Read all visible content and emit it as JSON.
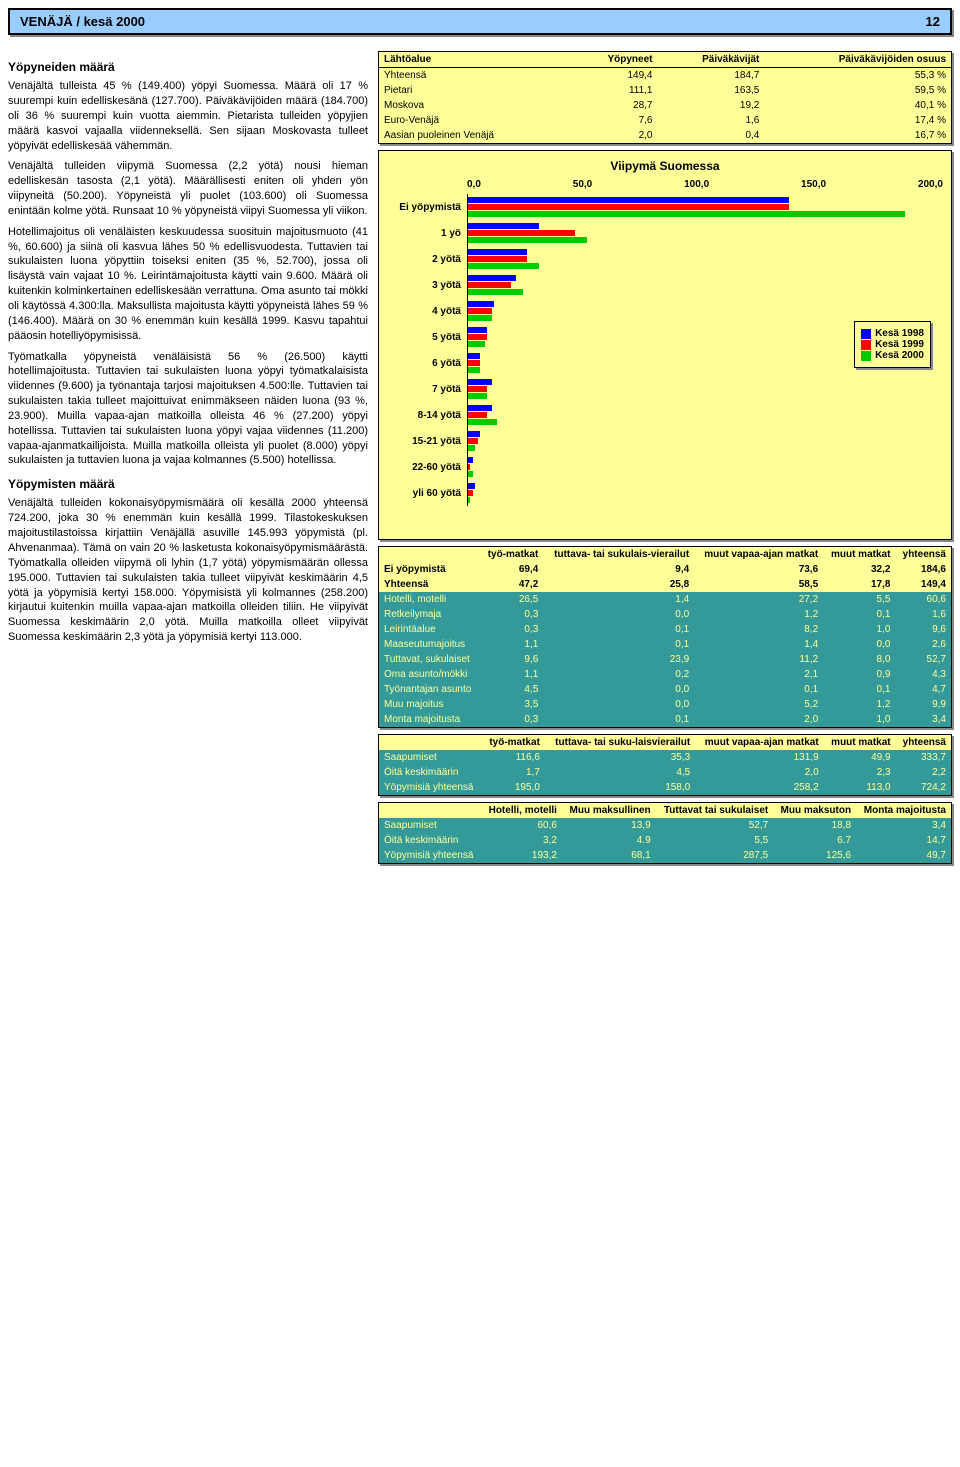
{
  "header": {
    "title": "VENÄJÄ / kesä 2000",
    "page": "12"
  },
  "left": {
    "h1": "Yöpyneiden määrä",
    "p1": "Venäjältä tulleista 45 % (149.400) yöpyi Suomessa. Määrä oli 17 % suurempi kuin edelliskesänä (127.700). Päiväkävijöiden määrä (184.700) oli 36 % suurempi kuin vuotta aiemmin. Pietarista tulleiden yöpyjien määrä kasvoi vajaalla viidenneksellä. Sen sijaan Moskovasta tulleet yöpyivät edelliskesää vähemmän.",
    "p2": "Venäjältä tulleiden viipymä Suomessa (2,2 yötä) nousi hieman edelliskesän tasosta (2,1 yötä). Määrällisesti eniten oli yhden yön viipyneitä (50.200). Yöpyneistä yli puolet (103.600) oli Suomessa enintään kolme yötä. Runsaat 10 % yöpyneistä viipyi Suomessa yli viikon.",
    "p3": "Hotellimajoitus oli venäläisten keskuudessa suosituin majoitusmuoto (41 %, 60.600) ja siinä oli kasvua lähes 50 % edellisvuodesta. Tuttavien tai sukulaisten luona yöpyttiin toiseksi eniten (35 %, 52.700), jossa oli lisäystä vain vajaat 10 %. Leirintämajoitusta käytti vain 9.600. Määrä oli kuitenkin kolminkertainen edelliskesään verrattuna. Oma asunto tai mökki oli käytössä 4.300:lla. Maksullista majoitusta käytti yöpyneistä lähes 59 % (146.400). Määrä on 30 % enemmän kuin kesällä 1999. Kasvu tapahtui pääosin hotelliyöpymisissä.",
    "p4": "Työmatkalla yöpyneistä venäläisistä 56 % (26.500) käytti hotellimajoitusta. Tuttavien tai sukulaisten luona yöpyi työmatkalaisista viidennes (9.600) ja työnantaja tarjosi majoituksen 4.500:lle. Tuttavien tai sukulaisten takia tulleet majoittuivat enimmäkseen näiden luona (93 %, 23.900). Muilla vapaa-ajan matkoilla olleista 46 % (27.200) yöpyi hotellissa. Tuttavien tai sukulaisten luona yöpyi vajaa viidennes (11.200) vapaa-ajanmatkailijoista. Muilla matkoilla olleista yli puolet (8.000) yöpyi sukulaisten ja tuttavien luona ja vajaa kolmannes (5.500) hotellissa.",
    "h2": "Yöpymisten määrä",
    "p5": "Venäjältä tulleiden kokonaisyöpymismäärä oli kesällä 2000 yhteensä 724.200, joka 30 % enemmän kuin kesällä 1999. Tilastokeskuksen majoitustilastoissa kirjattiin Venäjällä asuville 145.993 yöpymistä (pl. Ahvenanmaa). Tämä on vain 20 % lasketusta kokonaisyöpymismäärästä. Työmatkalla olleiden viipymä oli lyhin (1,7 yötä) yöpymismäärän ollessa 195.000. Tuttavien tai sukulaisten takia tulleet viipyivät keskimäärin 4,5 yötä ja yöpymisiä kertyi 158.000. Yöpymisistä yli kolmannes (258.200) kirjautui kuitenkin muilla vapaa-ajan matkoilla olleiden tiliin. He viipyivät Suomessa keskimäärin 2,0 yötä. Muilla matkoilla olleet viipyivät Suomessa keskimäärin 2,3 yötä ja yöpymisiä kertyi 113.000."
  },
  "table1": {
    "headers": [
      "Lähtöalue",
      "Yöpyneet",
      "Päiväkävijät",
      "Päiväkävijöiden osuus"
    ],
    "rows": [
      [
        "Yhteensä",
        "149,4",
        "184,7",
        "55,3 %"
      ],
      [
        "Pietari",
        "111,1",
        "163,5",
        "59,5 %"
      ],
      [
        "Moskova",
        "28,7",
        "19,2",
        "40,1 %"
      ],
      [
        "Euro-Venäjä",
        "7,6",
        "1,6",
        "17,4 %"
      ],
      [
        "Aasian puoleinen Venäjä",
        "2,0",
        "0,4",
        "16,7 %"
      ]
    ]
  },
  "chart": {
    "title": "Viipymä Suomessa",
    "axis": [
      "0,0",
      "50,0",
      "100,0",
      "150,0",
      "200,0"
    ],
    "xmax": 200,
    "colors": {
      "c1998": "#0000ff",
      "c1999": "#ff0000",
      "c2000": "#00cc00"
    },
    "legend": [
      "Kesä 1998",
      "Kesä 1999",
      "Kesä 2000"
    ],
    "categories": [
      {
        "label": "Ei yöpymistä",
        "v": [
          135,
          135,
          184
        ]
      },
      {
        "label": "1 yö",
        "v": [
          30,
          45,
          50
        ]
      },
      {
        "label": "2 yötä",
        "v": [
          25,
          25,
          30
        ]
      },
      {
        "label": "3 yötä",
        "v": [
          20,
          18,
          23
        ]
      },
      {
        "label": "4 yötä",
        "v": [
          11,
          10,
          10
        ]
      },
      {
        "label": "5 yötä",
        "v": [
          8,
          8,
          7
        ]
      },
      {
        "label": "6 yötä",
        "v": [
          5,
          5,
          5
        ]
      },
      {
        "label": "7 yötä",
        "v": [
          10,
          8,
          8
        ]
      },
      {
        "label": "8-14 yötä",
        "v": [
          10,
          8,
          12
        ]
      },
      {
        "label": "15-21 yötä",
        "v": [
          5,
          4,
          3
        ]
      },
      {
        "label": "22-60 yötä",
        "v": [
          2,
          1,
          2
        ]
      },
      {
        "label": "yli 60 yötä",
        "v": [
          3,
          2,
          1
        ]
      }
    ]
  },
  "table2": {
    "headers": [
      "",
      "työ-matkat",
      "tuttava- tai sukulais-vierailut",
      "muut vapaa-ajan matkat",
      "muut matkat",
      "yhteensä"
    ],
    "rows": [
      {
        "hl": true,
        "c": [
          "Ei yöpymistä",
          "69,4",
          "9,4",
          "73,6",
          "32,2",
          "184,6"
        ]
      },
      {
        "hl": true,
        "c": [
          "Yhteensä",
          "47,2",
          "25,8",
          "58,5",
          "17,8",
          "149,4"
        ]
      },
      {
        "c": [
          "Hotelli, motelli",
          "26,5",
          "1,4",
          "27,2",
          "5,5",
          "60,6"
        ]
      },
      {
        "c": [
          "Retkeilymaja",
          "0,3",
          "0,0",
          "1,2",
          "0,1",
          "1,6"
        ]
      },
      {
        "c": [
          "Leirintäalue",
          "0,3",
          "0,1",
          "8,2",
          "1,0",
          "9,6"
        ]
      },
      {
        "c": [
          "Maaseutumajoitus",
          "1,1",
          "0,1",
          "1,4",
          "0,0",
          "2,6"
        ]
      },
      {
        "c": [
          "Tuttavat, sukulaiset",
          "9,6",
          "23,9",
          "11,2",
          "8,0",
          "52,7"
        ]
      },
      {
        "c": [
          "Oma asunto/mökki",
          "1,1",
          "0,2",
          "2,1",
          "0,9",
          "4,3"
        ]
      },
      {
        "c": [
          "Työnantajan asunto",
          "4,5",
          "0,0",
          "0,1",
          "0,1",
          "4,7"
        ]
      },
      {
        "c": [
          "Muu majoitus",
          "3,5",
          "0,0",
          "5,2",
          "1,2",
          "9,9"
        ]
      },
      {
        "c": [
          "Monta majoitusta",
          "0,3",
          "0,1",
          "2,0",
          "1,0",
          "3,4"
        ]
      }
    ]
  },
  "table3": {
    "headers": [
      "",
      "työ-matkat",
      "tuttava- tai suku-laisvierailut",
      "muut vapaa-ajan matkat",
      "muut matkat",
      "yhteensä"
    ],
    "rows": [
      [
        "Saapumiset",
        "116,6",
        "35,3",
        "131,9",
        "49,9",
        "333,7"
      ],
      [
        "Öitä keskimäärin",
        "1,7",
        "4,5",
        "2,0",
        "2,3",
        "2,2"
      ],
      [
        "Yöpymisiä yhteensä",
        "195,0",
        "158,0",
        "258,2",
        "113,0",
        "724,2"
      ]
    ]
  },
  "table4": {
    "headers": [
      "",
      "Hotelli, motelli",
      "Muu maksullinen",
      "Tuttavat tai sukulaiset",
      "Muu maksuton",
      "Monta majoitusta"
    ],
    "rows": [
      [
        "Saapumiset",
        "60,6",
        "13,9",
        "52,7",
        "18,8",
        "3,4"
      ],
      [
        "Öitä keskimäärin",
        "3,2",
        "4.9",
        "5,5",
        "6.7",
        "14,7"
      ],
      [
        "Yöpymisiä yhteensä",
        "193,2",
        "68,1",
        "287,5",
        "125,6",
        "49,7"
      ]
    ]
  }
}
